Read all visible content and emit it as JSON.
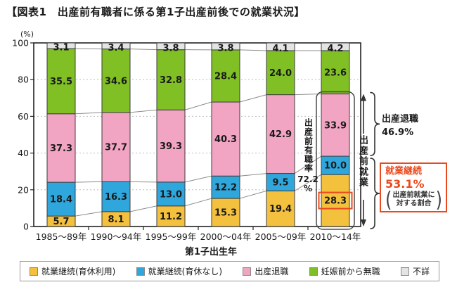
{
  "title": "【図表1　出産前有職者に係る第1子出産前後での就業状況】",
  "chart_data": {
    "type": "bar",
    "stacked": true,
    "percent": true,
    "title": "出産前有職者に係る第1子出産前後での就業状況",
    "unit_label": "(%)",
    "xlabel": "第1子出生年",
    "ylabel": "",
    "ylim": [
      0,
      100
    ],
    "y_ticks": [
      0,
      20,
      40,
      60,
      80,
      100
    ],
    "grid": "dotted-horizontal",
    "legend_position": "bottom",
    "categories": [
      "1985〜89年",
      "1990〜94年",
      "1995〜99年",
      "2000〜04年",
      "2005〜09年",
      "2010〜14年"
    ],
    "series": [
      {
        "name": "就業継続(育休利用)",
        "color": "#F4C13E",
        "values": [
          5.7,
          8.1,
          11.2,
          15.3,
          19.4,
          28.3
        ]
      },
      {
        "name": "就業継続(育休なし)",
        "color": "#30A7DC",
        "values": [
          18.4,
          16.3,
          13.0,
          12.2,
          9.5,
          10.0
        ]
      },
      {
        "name": "出産退職",
        "color": "#F2A5C3",
        "values": [
          37.3,
          37.7,
          39.3,
          40.3,
          42.9,
          33.9
        ]
      },
      {
        "name": "妊娠前から無職",
        "color": "#80C025",
        "values": [
          35.5,
          34.6,
          32.8,
          28.4,
          24.0,
          23.6
        ]
      },
      {
        "name": "不詳",
        "color": "#E4E4E4",
        "values": [
          3.1,
          3.4,
          3.8,
          3.8,
          4.1,
          4.2
        ]
      }
    ]
  },
  "annotations": {
    "employment_rate_vertical": "出産前有職率",
    "employment_rate_value": "72.2",
    "employment_rate_unit": "%",
    "pre_birth_work_vertical": "出産前就業",
    "quit_label": "出産退職",
    "quit_value": "46.9%",
    "highlight_box": {
      "title": "就業継続",
      "value": "53.1%",
      "note_line1": "出産前就業に",
      "note_line2": "対する割合"
    },
    "highlighted_category_index": 5,
    "highlighted_series_index": 0,
    "accent_color": "#E8491D"
  }
}
